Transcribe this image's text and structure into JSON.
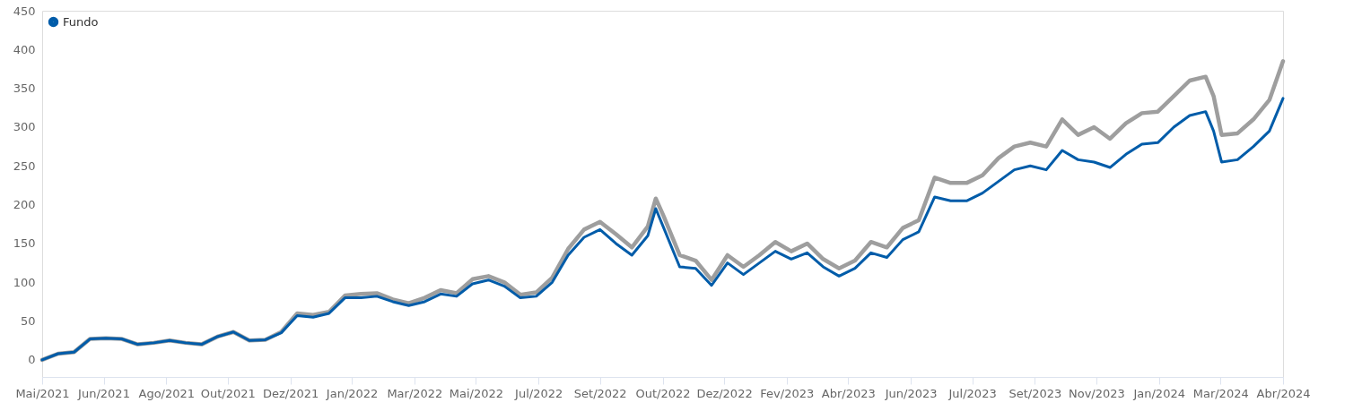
{
  "chart_data": {
    "type": "line",
    "x": [
      "2021-05-03",
      "2021-05-17",
      "2021-05-31",
      "2021-06-14",
      "2021-06-28",
      "2021-07-12",
      "2021-07-26",
      "2021-08-09",
      "2021-08-23",
      "2021-09-06",
      "2021-09-20",
      "2021-10-04",
      "2021-10-18",
      "2021-11-01",
      "2021-11-15",
      "2021-11-29",
      "2021-12-13",
      "2021-12-27",
      "2022-01-10",
      "2022-01-24",
      "2022-02-07",
      "2022-02-21",
      "2022-03-07",
      "2022-03-21",
      "2022-04-04",
      "2022-04-18",
      "2022-05-02",
      "2022-05-16",
      "2022-05-30",
      "2022-06-13",
      "2022-06-27",
      "2022-07-11",
      "2022-07-25",
      "2022-08-08",
      "2022-08-22",
      "2022-09-05",
      "2022-09-19",
      "2022-10-03",
      "2022-10-17",
      "2022-10-24",
      "2022-10-31",
      "2022-11-14",
      "2022-11-28",
      "2022-12-12",
      "2022-12-26",
      "2023-01-09",
      "2023-01-23",
      "2023-02-06",
      "2023-02-20",
      "2023-03-06",
      "2023-03-20",
      "2023-04-03",
      "2023-04-17",
      "2023-05-01",
      "2023-05-15",
      "2023-05-29",
      "2023-06-12",
      "2023-06-26",
      "2023-07-10",
      "2023-07-24",
      "2023-08-07",
      "2023-08-21",
      "2023-09-04",
      "2023-09-18",
      "2023-10-02",
      "2023-10-16",
      "2023-10-30",
      "2023-11-13",
      "2023-11-27",
      "2023-12-11",
      "2023-12-25",
      "2024-01-08",
      "2024-01-22",
      "2024-02-05",
      "2024-02-19",
      "2024-02-26",
      "2024-03-04",
      "2024-03-18",
      "2024-04-01",
      "2024-04-15",
      "2024-04-27"
    ],
    "series": [
      {
        "name": "Fundo",
        "color": "#005ca9",
        "values": [
          0,
          8,
          10,
          27,
          28,
          27,
          20,
          22,
          25,
          22,
          20,
          30,
          36,
          25,
          26,
          35,
          57,
          55,
          60,
          80,
          80,
          82,
          75,
          70,
          75,
          85,
          82,
          98,
          103,
          95,
          80,
          82,
          100,
          135,
          158,
          168,
          150,
          135,
          160,
          195,
          170,
          120,
          118,
          96,
          125,
          110,
          125,
          140,
          130,
          138,
          120,
          108,
          118,
          138,
          132,
          155,
          165,
          210,
          205,
          205,
          215,
          230,
          245,
          250,
          245,
          270,
          258,
          255,
          248,
          265,
          278,
          280,
          300,
          315,
          320,
          295,
          255,
          258,
          275,
          295,
          337
        ]
      },
      {
        "color": "#9e9e9e",
        "values": [
          0,
          8,
          10,
          27,
          28,
          27,
          20,
          22,
          25,
          22,
          20,
          30,
          36,
          25,
          26,
          36,
          60,
          58,
          62,
          83,
          85,
          86,
          78,
          73,
          80,
          90,
          86,
          104,
          108,
          100,
          84,
          87,
          106,
          143,
          168,
          178,
          162,
          145,
          172,
          208,
          185,
          135,
          128,
          103,
          135,
          120,
          135,
          152,
          140,
          150,
          130,
          118,
          128,
          152,
          145,
          170,
          180,
          235,
          228,
          228,
          238,
          260,
          275,
          280,
          275,
          310,
          290,
          300,
          285,
          305,
          318,
          320,
          340,
          360,
          365,
          340,
          290,
          292,
          310,
          335,
          385
        ]
      }
    ],
    "xlim": [
      "2021-05-03",
      "2024-04-27"
    ],
    "xticks": [
      {
        "value": "2021-05-03",
        "label": "Mai/2021"
      },
      {
        "value": "2021-06-26",
        "label": "Jun/2021"
      },
      {
        "value": "2021-08-20",
        "label": "Ago/2021"
      },
      {
        "value": "2021-10-13",
        "label": "Out/2021"
      },
      {
        "value": "2021-12-07",
        "label": "Dez/2021"
      },
      {
        "value": "2022-01-30",
        "label": "Jan/2022"
      },
      {
        "value": "2022-03-26",
        "label": "Mar/2022"
      },
      {
        "value": "2022-05-19",
        "label": "Mai/2022"
      },
      {
        "value": "2022-07-13",
        "label": "Jul/2022"
      },
      {
        "value": "2022-09-05",
        "label": "Set/2022"
      },
      {
        "value": "2022-10-30",
        "label": "Out/2022"
      },
      {
        "value": "2022-12-23",
        "label": "Dez/2022"
      },
      {
        "value": "2023-02-16",
        "label": "Fev/2023"
      },
      {
        "value": "2023-04-11",
        "label": "Abr/2023"
      },
      {
        "value": "2023-06-05",
        "label": "Jun/2023"
      },
      {
        "value": "2023-07-29",
        "label": "Jul/2023"
      },
      {
        "value": "2023-09-22",
        "label": "Set/2023"
      },
      {
        "value": "2023-11-15",
        "label": "Nov/2023"
      },
      {
        "value": "2024-01-09",
        "label": "Jan/2024"
      },
      {
        "value": "2024-03-03",
        "label": "Mar/2024"
      },
      {
        "value": "2024-04-27",
        "label": "Abr/2024"
      }
    ],
    "ylim": [
      -22,
      450
    ],
    "yticks": [
      0,
      50,
      100,
      150,
      200,
      250,
      300,
      350,
      400,
      450
    ],
    "grid": false,
    "legend": "top left",
    "line_style": "solid",
    "marker": "none"
  }
}
